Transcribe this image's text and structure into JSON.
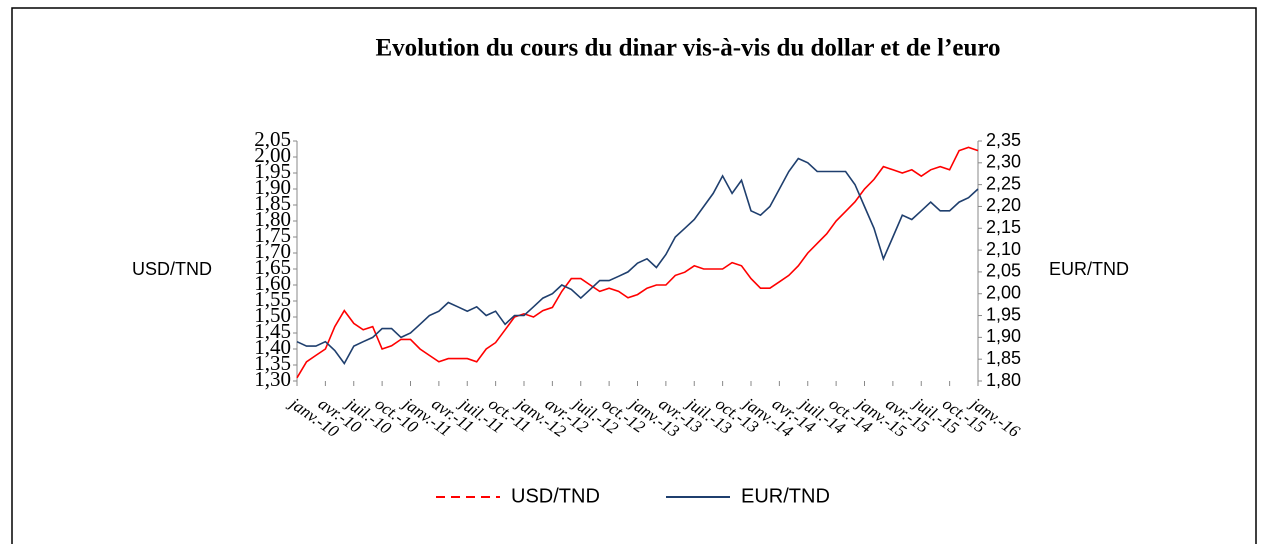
{
  "chart_data": {
    "type": "line",
    "title": "Evolution du cours du dinar vis-à-vis du dollar et de l’euro",
    "ylabel": "USD/TND",
    "y2label": "EUR/TND",
    "categories": [
      "janv.-10",
      null,
      null,
      "avr.-10",
      null,
      null,
      "juil.-10",
      null,
      null,
      "oct.-10",
      null,
      null,
      "janv.-11",
      null,
      null,
      "avr.-11",
      null,
      null,
      "juil.-11",
      null,
      null,
      "oct.-11",
      null,
      null,
      "janv.-12",
      null,
      null,
      "avr.-12",
      null,
      null,
      "juil.-12",
      null,
      null,
      "oct.-12",
      null,
      null,
      "janv.-13",
      null,
      null,
      "avr.-13",
      null,
      null,
      "juil.-13",
      null,
      null,
      "oct.-13",
      null,
      null,
      "janv.-14",
      null,
      null,
      "avr.-14",
      null,
      null,
      "juil.-14",
      null,
      null,
      "oct.-14",
      null,
      null,
      "janv.-15",
      null,
      null,
      "avr.-15",
      null,
      null,
      "juil.-15",
      null,
      null,
      "oct.-15",
      null,
      null,
      "janv.-16"
    ],
    "series": [
      {
        "name": "USD/TND",
        "color": "#ff0000",
        "legend_dash": true,
        "values": [
          1.31,
          1.36,
          1.38,
          1.4,
          1.47,
          1.52,
          1.48,
          1.46,
          1.47,
          1.4,
          1.41,
          1.43,
          1.43,
          1.4,
          1.38,
          1.36,
          1.37,
          1.37,
          1.37,
          1.36,
          1.4,
          1.42,
          1.46,
          1.5,
          1.51,
          1.5,
          1.52,
          1.53,
          1.58,
          1.62,
          1.62,
          1.6,
          1.58,
          1.59,
          1.58,
          1.56,
          1.57,
          1.59,
          1.6,
          1.6,
          1.63,
          1.64,
          1.66,
          1.65,
          1.65,
          1.65,
          1.67,
          1.66,
          1.62,
          1.59,
          1.59,
          1.61,
          1.63,
          1.66,
          1.7,
          1.73,
          1.76,
          1.8,
          1.83,
          1.86,
          1.9,
          1.93,
          1.97,
          1.96,
          1.95,
          1.96,
          1.94,
          1.96,
          1.97,
          1.96,
          2.02,
          2.03,
          2.02
        ]
      },
      {
        "name": "EUR/TND",
        "color": "#1f3f6e",
        "axis": "y2",
        "values": [
          1.89,
          1.88,
          1.88,
          1.89,
          1.87,
          1.84,
          1.88,
          1.89,
          1.9,
          1.92,
          1.92,
          1.9,
          1.91,
          1.93,
          1.95,
          1.96,
          1.98,
          1.97,
          1.96,
          1.97,
          1.95,
          1.96,
          1.93,
          1.95,
          1.95,
          1.97,
          1.99,
          2.0,
          2.02,
          2.01,
          1.99,
          2.01,
          2.03,
          2.03,
          2.04,
          2.05,
          2.07,
          2.08,
          2.06,
          2.09,
          2.13,
          2.15,
          2.17,
          2.2,
          2.23,
          2.27,
          2.23,
          2.26,
          2.19,
          2.18,
          2.2,
          2.24,
          2.28,
          2.31,
          2.3,
          2.28,
          2.28,
          2.28,
          2.28,
          2.25,
          2.2,
          2.15,
          2.08,
          2.13,
          2.18,
          2.17,
          2.19,
          2.21,
          2.19,
          2.19,
          2.21,
          2.22,
          2.24
        ]
      }
    ],
    "ylim": [
      1.3,
      2.05
    ],
    "yticks": [
      {
        "value": 1.3,
        "label": "1,30"
      },
      {
        "value": 1.35,
        "label": "1,35"
      },
      {
        "value": 1.4,
        "label": "1,40"
      },
      {
        "value": 1.45,
        "label": "1,45"
      },
      {
        "value": 1.5,
        "label": "1,50"
      },
      {
        "value": 1.55,
        "label": "1,55"
      },
      {
        "value": 1.6,
        "label": "1,60"
      },
      {
        "value": 1.65,
        "label": "1,65"
      },
      {
        "value": 1.7,
        "label": "1,70"
      },
      {
        "value": 1.75,
        "label": "1,75"
      },
      {
        "value": 1.8,
        "label": "1,80"
      },
      {
        "value": 1.85,
        "label": "1,85"
      },
      {
        "value": 1.9,
        "label": "1,90"
      },
      {
        "value": 1.95,
        "label": "1,95"
      },
      {
        "value": 2.0,
        "label": "2,00"
      },
      {
        "value": 2.05,
        "label": "2,05"
      }
    ],
    "y2lim": [
      1.8,
      2.35
    ],
    "y2ticks": [
      {
        "value": 1.8,
        "label": "1,80"
      },
      {
        "value": 1.85,
        "label": "1,85"
      },
      {
        "value": 1.9,
        "label": "1,90"
      },
      {
        "value": 1.95,
        "label": "1,95"
      },
      {
        "value": 2.0,
        "label": "2,00"
      },
      {
        "value": 2.05,
        "label": "2,05"
      },
      {
        "value": 2.1,
        "label": "2,10"
      },
      {
        "value": 2.15,
        "label": "2,15"
      },
      {
        "value": 2.2,
        "label": "2,20"
      },
      {
        "value": 2.25,
        "label": "2,25"
      },
      {
        "value": 2.3,
        "label": "2,30"
      },
      {
        "value": 2.35,
        "label": "2,35"
      }
    ],
    "grid": false,
    "legend": "bottom"
  }
}
